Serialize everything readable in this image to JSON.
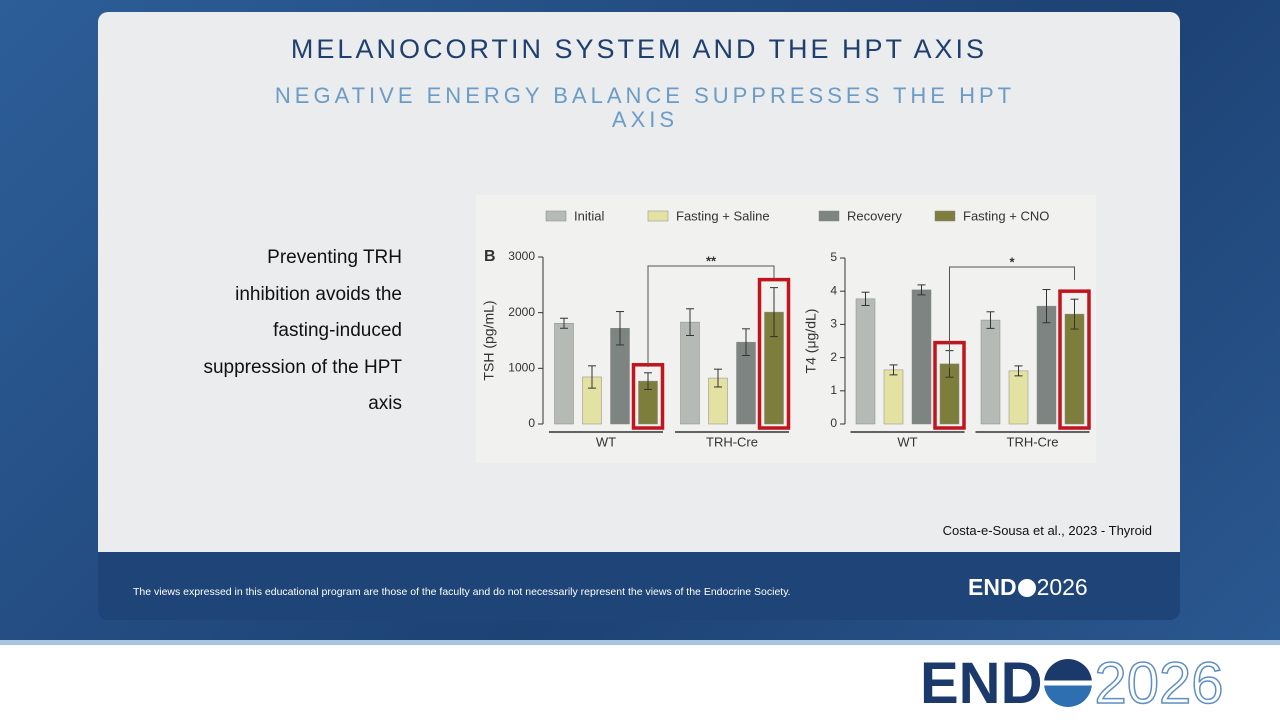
{
  "slide": {
    "title": "MELANOCORTIN SYSTEM AND THE HPT AXIS",
    "subtitle": "NEGATIVE ENERGY BALANCE SUPPRESSES THE HPT AXIS",
    "body": [
      "Preventing TRH",
      "inhibition avoids the",
      "fasting-induced",
      "suppression of the HPT",
      "axis"
    ],
    "panel_label": "B",
    "citation": "Costa-e-Sousa et al., 2023 - Thyroid",
    "disclaimer": "The views expressed in this educational program are those of the faculty and do not necessarily represent the views of the Endocrine Society.",
    "logo": {
      "left": "END",
      "right": "2026"
    }
  },
  "chart_data": [
    {
      "type": "bar",
      "y_label": "TSH (pg/mL)",
      "categories": [
        "WT",
        "TRH-Cre"
      ],
      "significance": "**",
      "ylim": [
        0,
        3000
      ],
      "yticks": [
        0,
        1000,
        2000,
        3000
      ],
      "series": [
        {
          "name": "Initial",
          "color": "#b5bbb4",
          "values": [
            1810,
            1830
          ],
          "errors": [
            90,
            240
          ]
        },
        {
          "name": "Fasting + Saline",
          "color": "#e4e2a2",
          "values": [
            845,
            825
          ],
          "errors": [
            200,
            160
          ]
        },
        {
          "name": "Recovery",
          "color": "#7e8481",
          "values": [
            1720,
            1470
          ],
          "errors": [
            300,
            240
          ]
        },
        {
          "name": "Fasting + CNO",
          "color": "#7d7d3c",
          "values": [
            770,
            2010
          ],
          "errors": [
            150,
            440
          ]
        }
      ]
    },
    {
      "type": "bar",
      "y_label": "T4 (μg/dL)",
      "categories": [
        "WT",
        "TRH-Cre"
      ],
      "significance": "*",
      "ylim": [
        0,
        5
      ],
      "yticks": [
        0,
        1,
        2,
        3,
        4,
        5
      ],
      "series": [
        {
          "color": "#b5bbb4",
          "values": [
            3.77,
            3.13
          ],
          "errors": [
            0.2,
            0.25
          ]
        },
        {
          "color": "#e4e2a2",
          "values": [
            1.63,
            1.6
          ],
          "errors": [
            0.15,
            0.15
          ]
        },
        {
          "color": "#7e8481",
          "values": [
            4.04,
            3.55
          ],
          "errors": [
            0.15,
            0.5
          ]
        },
        {
          "color": "#7d7d3c",
          "values": [
            1.81,
            3.31
          ],
          "errors": [
            0.4,
            0.45
          ]
        }
      ]
    }
  ]
}
